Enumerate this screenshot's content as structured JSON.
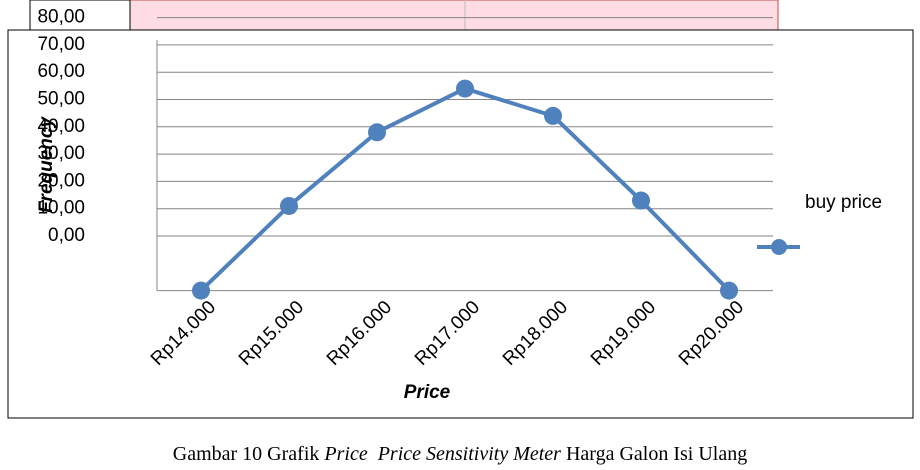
{
  "chart_data": {
    "type": "line",
    "categories": [
      "Rp14.000",
      "Rp15.000",
      "Rp16.000",
      "Rp17.000",
      "Rp18.000",
      "Rp19.000",
      "Rp20.000"
    ],
    "series": [
      {
        "name": "buy price",
        "color": "#4f81bd",
        "values": [
          -20,
          11,
          38,
          54,
          44,
          13,
          -20
        ]
      }
    ],
    "ylim": [
      -20,
      80
    ],
    "yticks": [
      {
        "value": 0,
        "label": "0,00"
      },
      {
        "value": 10,
        "label": "10,00"
      },
      {
        "value": 20,
        "label": "20,00"
      },
      {
        "value": 30,
        "label": "30,00"
      },
      {
        "value": 40,
        "label": "40,00"
      },
      {
        "value": 50,
        "label": "50,00"
      },
      {
        "value": 60,
        "label": "60,00"
      },
      {
        "value": 70,
        "label": "70,00"
      },
      {
        "value": 80,
        "label": "80,00"
      }
    ],
    "xlabel": "Price",
    "ylabel": "Frequency",
    "grid": true,
    "legend": "right"
  },
  "caption": [
    "Gambar 10 Grafik ",
    "Price",
    "  ",
    "Price Sensitivity Meter",
    " Harga Galon Isi Ulang"
  ]
}
